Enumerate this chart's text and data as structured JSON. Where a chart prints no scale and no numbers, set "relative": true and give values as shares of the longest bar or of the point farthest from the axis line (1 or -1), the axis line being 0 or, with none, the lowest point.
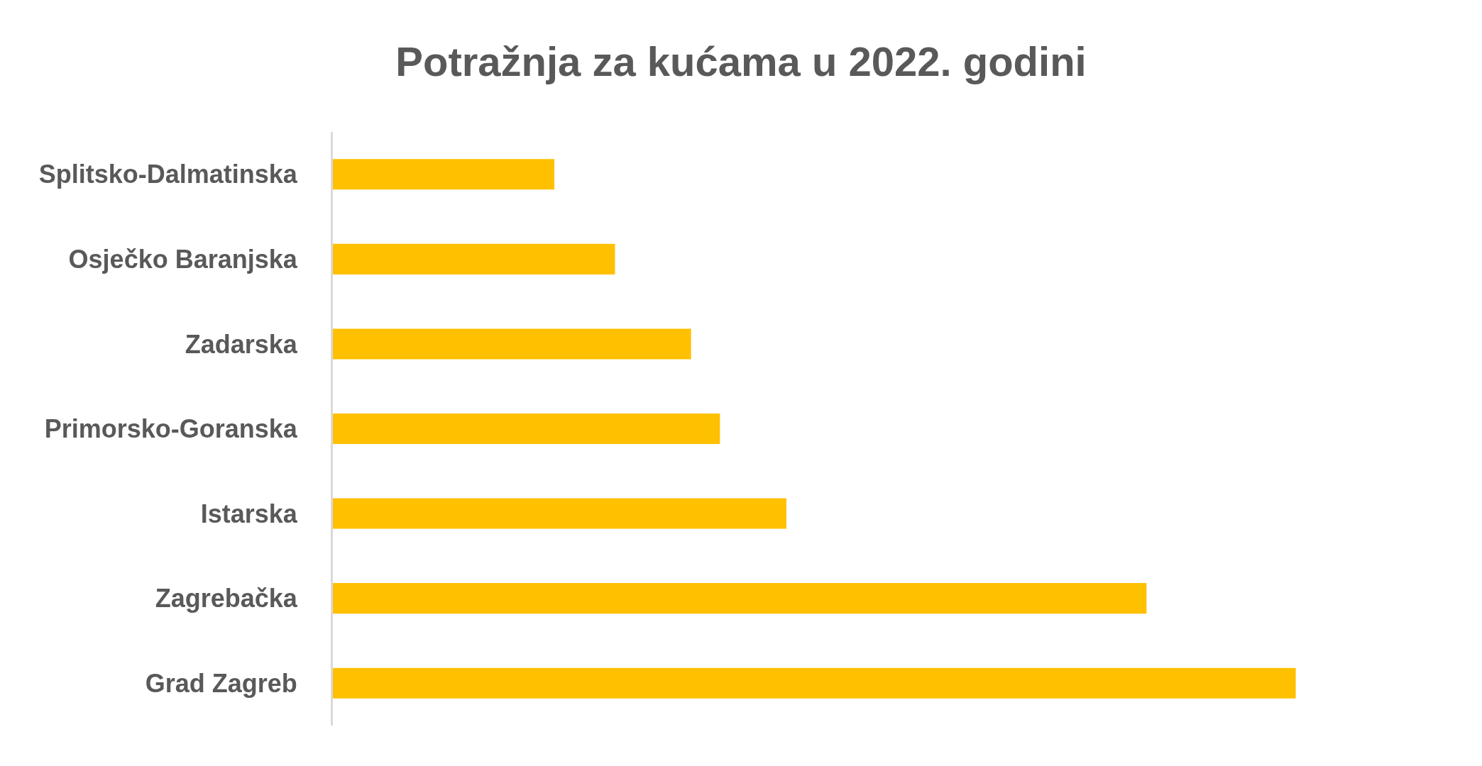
{
  "chart_data": {
    "type": "bar",
    "orientation": "horizontal",
    "relative": true,
    "title": "Potražnja za kućama u 2022. godini",
    "categories": [
      "Splitsko-Dalmatinska",
      "Osječko Baranjska",
      "Zadarska",
      "Primorsko-Goranska",
      "Istarska",
      "Zagrebačka",
      "Grad Zagreb"
    ],
    "values": [
      0.23,
      0.293,
      0.372,
      0.402,
      0.471,
      0.845,
      1.0
    ],
    "color": "#ffc000"
  }
}
